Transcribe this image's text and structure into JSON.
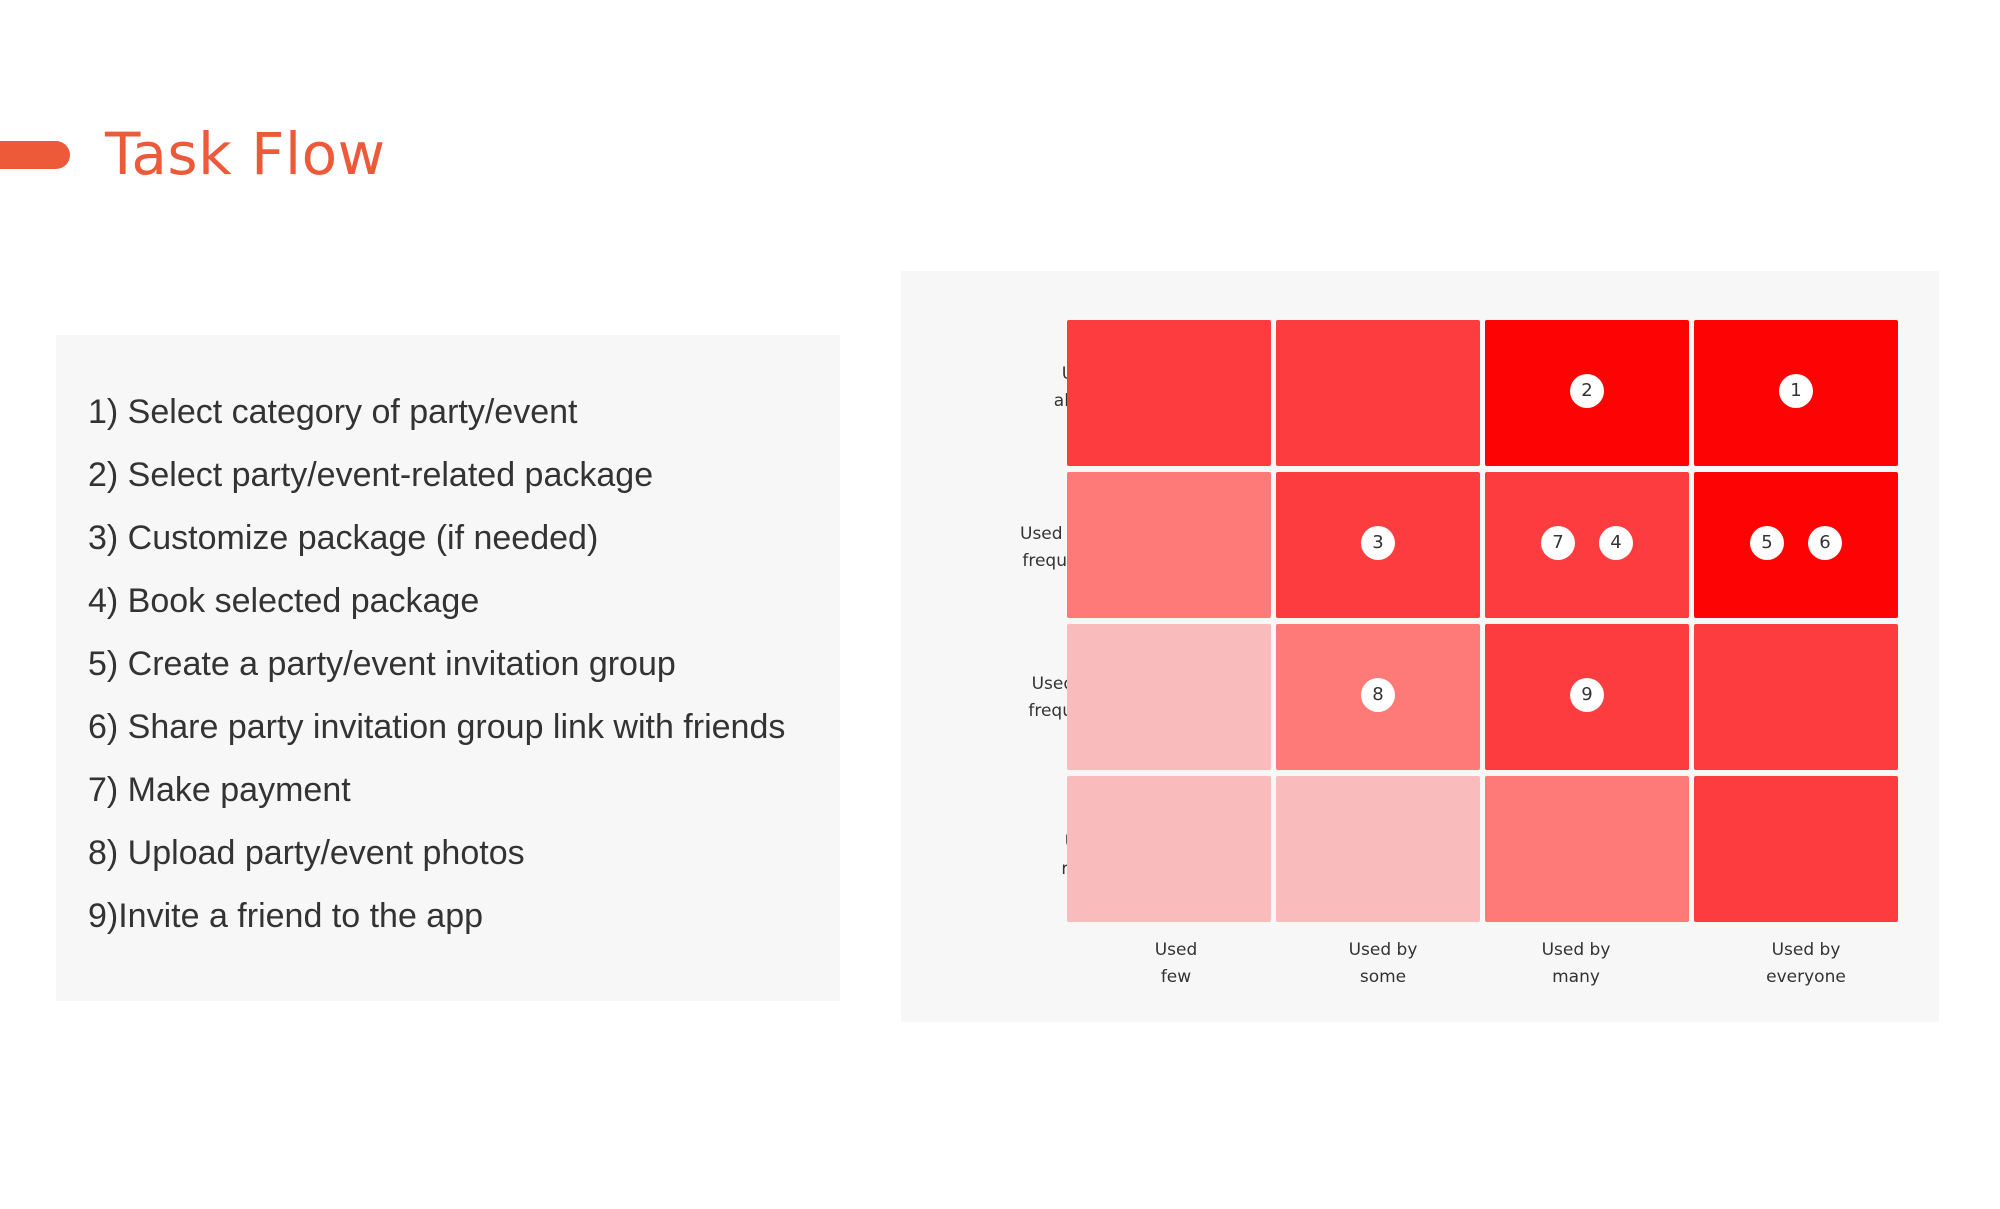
{
  "title": "Task Flow",
  "colors": {
    "accent": "#ec5a3a",
    "level_1": "#fabbbd",
    "level_2": "#fd7a78",
    "level_3": "#fd3c3f",
    "level_4": "#fe0303",
    "badge": "#ffffff"
  },
  "tasks": [
    "1) Select category of party/event",
    "2) Select party/event-related package",
    "3) Customize package (if needed)",
    "4) Book selected package",
    "5) Create a party/event invitation group",
    "6) Share party invitation group link with friends",
    "7) Make payment",
    "8) Upload party/event photos",
    "9)Invite a friend to the app"
  ],
  "matrix": {
    "rows": [
      {
        "id": "always",
        "label_lines": [
          "Used",
          "always"
        ]
      },
      {
        "id": "more",
        "label_lines": [
          "Used more",
          "frequently"
        ]
      },
      {
        "id": "less",
        "label_lines": [
          "Used less",
          "frequently"
        ]
      },
      {
        "id": "rarely",
        "label_lines": [
          "Used",
          "rarely"
        ]
      }
    ],
    "columns": [
      {
        "id": "few",
        "label_lines": [
          "Used",
          "few"
        ]
      },
      {
        "id": "some",
        "label_lines": [
          "Used by",
          "some"
        ]
      },
      {
        "id": "many",
        "label_lines": [
          "Used by",
          "many"
        ]
      },
      {
        "id": "everyone",
        "label_lines": [
          "Used by",
          "everyone"
        ]
      }
    ],
    "intensity": [
      [
        3,
        3,
        4,
        4
      ],
      [
        2,
        3,
        3,
        4
      ],
      [
        1,
        2,
        3,
        3
      ],
      [
        1,
        1,
        2,
        3
      ]
    ],
    "placements": [
      {
        "task": "1",
        "row": 0,
        "col": 3
      },
      {
        "task": "2",
        "row": 0,
        "col": 2
      },
      {
        "task": "3",
        "row": 1,
        "col": 1
      },
      {
        "task": "7",
        "row": 1,
        "col": 2
      },
      {
        "task": "4",
        "row": 1,
        "col": 2
      },
      {
        "task": "5",
        "row": 1,
        "col": 3
      },
      {
        "task": "6",
        "row": 1,
        "col": 3
      },
      {
        "task": "8",
        "row": 2,
        "col": 1
      },
      {
        "task": "9",
        "row": 2,
        "col": 2
      }
    ]
  }
}
